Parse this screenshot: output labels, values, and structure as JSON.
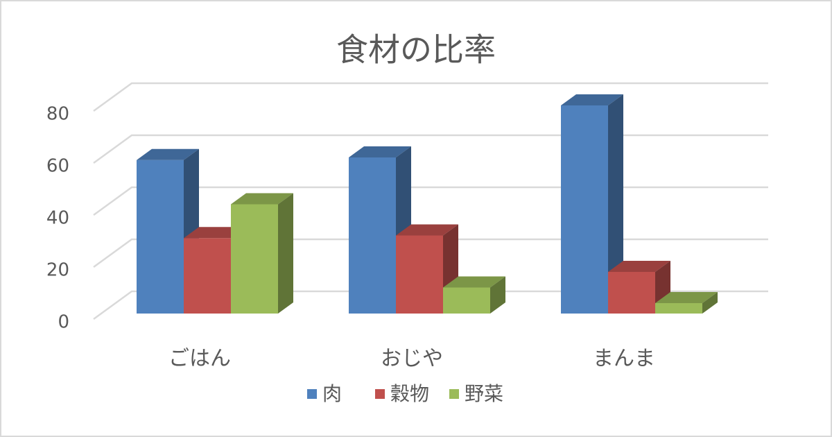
{
  "chart_data": {
    "type": "bar3d",
    "title": "食材の比率",
    "categories": [
      "ごはん",
      "おじや",
      "まんま"
    ],
    "series": [
      {
        "name": "肉",
        "color": "#4f81bd",
        "values": [
          59,
          60,
          80
        ]
      },
      {
        "name": "穀物",
        "color": "#c0504d",
        "values": [
          29,
          30,
          16
        ]
      },
      {
        "name": "野菜",
        "color": "#9bbb59",
        "values": [
          42,
          10,
          4
        ]
      }
    ],
    "ylim": [
      0,
      80
    ],
    "yticks": [
      0,
      20,
      40,
      60,
      80
    ],
    "grid": true,
    "legend": "bottom"
  }
}
